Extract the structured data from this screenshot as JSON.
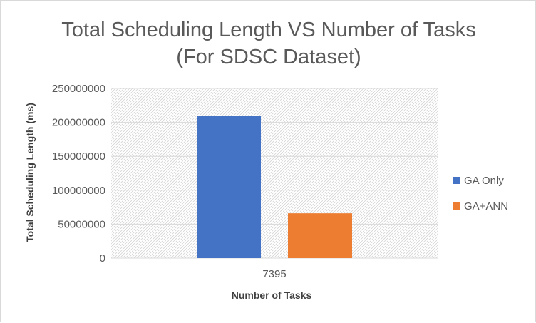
{
  "chart_data": {
    "type": "bar",
    "title_line1": "Total Scheduling Length VS Number of Tasks",
    "title_line2": "(For SDSC Dataset)",
    "xlabel": "Number of Tasks",
    "ylabel": "Total Scheduling Length (ms)",
    "categories": [
      "7395"
    ],
    "series": [
      {
        "name": "GA Only",
        "values": [
          210000000
        ],
        "color": "#4472C4"
      },
      {
        "name": "GA+ANN",
        "values": [
          66000000
        ],
        "color": "#ED7D31"
      }
    ],
    "ylim": [
      0,
      250000000
    ],
    "yticks": [
      "0",
      "50000000",
      "100000000",
      "150000000",
      "200000000",
      "250000000"
    ],
    "grid": true,
    "plot_area_pattern": "diagonal-hatch",
    "legend_position": "right"
  }
}
